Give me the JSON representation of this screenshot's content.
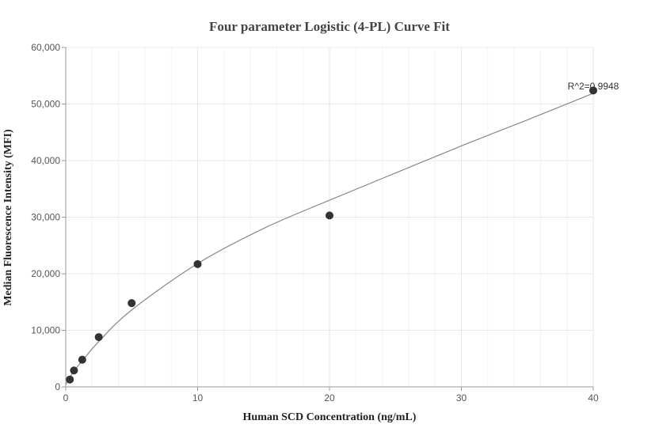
{
  "chart_data": {
    "type": "scatter",
    "title": "Four parameter Logistic (4-PL) Curve Fit",
    "xlabel": "Human SCD Concentration (ng/mL)",
    "ylabel": "Median Fluorescence Intensity (MFI)",
    "xlim": [
      0,
      40
    ],
    "ylim": [
      0,
      60000
    ],
    "x_ticks": [
      0,
      10,
      20,
      30,
      40
    ],
    "x_tick_labels": [
      "0",
      "10",
      "20",
      "30",
      "40"
    ],
    "y_ticks": [
      0,
      10000,
      20000,
      30000,
      40000,
      50000,
      60000
    ],
    "y_tick_labels": [
      "0",
      "10,000",
      "20,000",
      "30,000",
      "40,000",
      "50,000",
      "60,000"
    ],
    "grid": true,
    "annotation": "R^2=0.9948",
    "points": [
      {
        "x": 0.3125,
        "y": 1300
      },
      {
        "x": 0.625,
        "y": 2900
      },
      {
        "x": 1.25,
        "y": 4800
      },
      {
        "x": 2.5,
        "y": 8800
      },
      {
        "x": 5,
        "y": 14800
      },
      {
        "x": 10,
        "y": 21700
      },
      {
        "x": 20,
        "y": 30300
      },
      {
        "x": 40,
        "y": 52400
      }
    ],
    "fit_curve": {
      "name": "4-PL fit",
      "x": [
        0,
        0.3125,
        0.625,
        1.25,
        2.5,
        5,
        10,
        15,
        20,
        25,
        30,
        35,
        40
      ],
      "y": [
        400,
        1700,
        2800,
        4600,
        8000,
        13600,
        21800,
        28000,
        33000,
        37800,
        42600,
        47200,
        51900
      ]
    },
    "colors": {
      "points": "#333333",
      "curve": "#888888",
      "grid": "#e8e8e8",
      "axis": "#999999",
      "text": "#444444"
    }
  }
}
